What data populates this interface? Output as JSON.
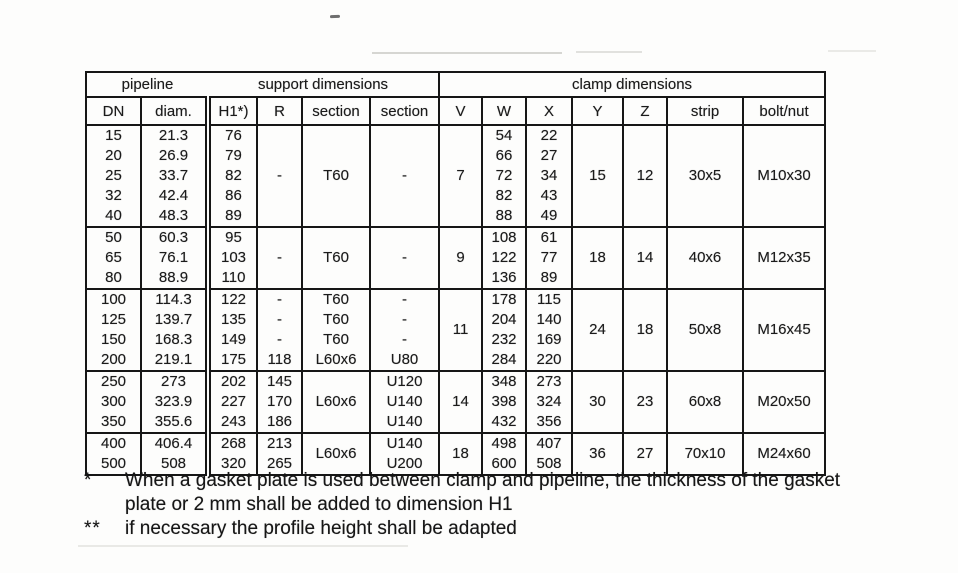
{
  "table": {
    "header_groups": [
      {
        "label": "pipeline",
        "span": 2
      },
      {
        "label": "support dimensions",
        "span": 4
      },
      {
        "label": "clamp dimensions",
        "span": 7
      }
    ],
    "columns": [
      "DN",
      "diam.",
      "H1*)",
      "R",
      "section",
      "section",
      "V",
      "W",
      "X",
      "Y",
      "Z",
      "strip",
      "bolt/nut"
    ],
    "groups": [
      {
        "dn": [
          "15",
          "20",
          "25",
          "32",
          "40"
        ],
        "diam": [
          "21.3",
          "26.9",
          "33.7",
          "42.4",
          "48.3"
        ],
        "h1": [
          "76",
          "79",
          "82",
          "86",
          "89"
        ],
        "r": [
          "-"
        ],
        "section1": [
          "T60"
        ],
        "section2": [
          "-"
        ],
        "v": "7",
        "w": [
          "54",
          "66",
          "72",
          "82",
          "88"
        ],
        "x": [
          "22",
          "27",
          "34",
          "43",
          "49"
        ],
        "y": "15",
        "z": "12",
        "strip": "30x5",
        "bolt_nut": "M10x30"
      },
      {
        "dn": [
          "50",
          "65",
          "80"
        ],
        "diam": [
          "60.3",
          "76.1",
          "88.9"
        ],
        "h1": [
          "95",
          "103",
          "110"
        ],
        "r": [
          "-"
        ],
        "section1": [
          "T60"
        ],
        "section2": [
          "-"
        ],
        "v": "9",
        "w": [
          "108",
          "122",
          "136"
        ],
        "x": [
          "61",
          "77",
          "89"
        ],
        "y": "18",
        "z": "14",
        "strip": "40x6",
        "bolt_nut": "M12x35"
      },
      {
        "dn": [
          "100",
          "125",
          "150",
          "200"
        ],
        "diam": [
          "114.3",
          "139.7",
          "168.3",
          "219.1"
        ],
        "h1": [
          "122",
          "135",
          "149",
          "175"
        ],
        "r": [
          "-",
          "-",
          "-",
          "118"
        ],
        "section1": [
          "T60",
          "T60",
          "T60",
          "L60x6"
        ],
        "section2": [
          "-",
          "-",
          "-",
          "U80"
        ],
        "v": "11",
        "w": [
          "178",
          "204",
          "232",
          "284"
        ],
        "x": [
          "115",
          "140",
          "169",
          "220"
        ],
        "y": "24",
        "z": "18",
        "strip": "50x8",
        "bolt_nut": "M16x45"
      },
      {
        "dn": [
          "250",
          "300",
          "350"
        ],
        "diam": [
          "273",
          "323.9",
          "355.6"
        ],
        "h1": [
          "202",
          "227",
          "243"
        ],
        "r": [
          "145",
          "170",
          "186"
        ],
        "section1": [
          "L60x6"
        ],
        "section2": [
          "U120",
          "U140",
          "U140"
        ],
        "v": "14",
        "w": [
          "348",
          "398",
          "432"
        ],
        "x": [
          "273",
          "324",
          "356"
        ],
        "y": "30",
        "z": "23",
        "strip": "60x8",
        "bolt_nut": "M20x50"
      },
      {
        "dn": [
          "400",
          "500"
        ],
        "diam": [
          "406.4",
          "508"
        ],
        "h1": [
          "268",
          "320"
        ],
        "r": [
          "213",
          "265"
        ],
        "section1": [
          "L60x6"
        ],
        "section2": [
          "U140",
          "U200"
        ],
        "v": "18",
        "w": [
          "498",
          "600"
        ],
        "x": [
          "407",
          "508"
        ],
        "y": "36",
        "z": "27",
        "strip": "70x10",
        "bolt_nut": "M24x60"
      }
    ]
  },
  "footnotes": [
    {
      "marker": "*",
      "lines": [
        "When a gasket plate is used between clamp and pipeline, the thickness of the gasket",
        "plate or 2 mm shall be added to dimension H1"
      ]
    },
    {
      "marker": "**",
      "lines": [
        "if necessary the profile height shall be adapted"
      ]
    }
  ]
}
